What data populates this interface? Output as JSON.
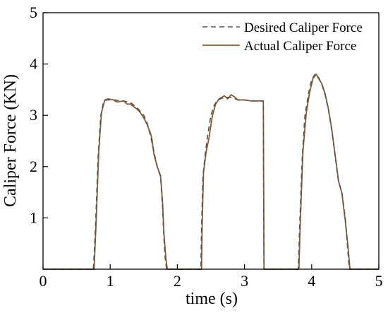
{
  "chart_data": {
    "type": "line",
    "title": "",
    "xlabel": "time (s)",
    "ylabel": "Caliper Force (KN)",
    "xlim": [
      0,
      5
    ],
    "ylim": [
      0,
      5
    ],
    "xticks": [
      "0",
      "1",
      "2",
      "3",
      "4",
      "5"
    ],
    "yticks": [
      "1",
      "2",
      "3",
      "4",
      "5"
    ],
    "grid": false,
    "legend_position": "top-right",
    "series": [
      {
        "name": "Desired Caliper Force",
        "style": "dashed",
        "color": "#555555",
        "x": [
          0,
          0.75,
          0.78,
          0.82,
          0.86,
          0.9,
          0.95,
          1.05,
          1.2,
          1.3,
          1.4,
          1.5,
          1.55,
          1.6,
          1.65,
          1.7,
          1.75,
          1.78,
          1.8,
          1.82,
          1.84,
          2.35,
          2.36,
          2.38,
          2.42,
          2.45,
          2.5,
          2.55,
          2.6,
          2.7,
          2.8,
          2.9,
          3.0,
          3.1,
          3.2,
          3.28,
          3.29,
          3.8,
          3.82,
          3.86,
          3.9,
          3.95,
          4.0,
          4.05,
          4.1,
          4.15,
          4.2,
          4.25,
          4.3,
          4.35,
          4.4,
          4.45,
          4.5,
          4.53,
          4.56,
          5.0
        ],
        "y": [
          0,
          0,
          0.8,
          2.2,
          3.0,
          3.25,
          3.3,
          3.3,
          3.28,
          3.25,
          3.15,
          3.0,
          2.85,
          2.6,
          2.3,
          2.0,
          1.8,
          1.2,
          0.6,
          0.2,
          0,
          0,
          0.8,
          1.8,
          2.3,
          2.6,
          3.0,
          3.2,
          3.3,
          3.35,
          3.35,
          3.3,
          3.3,
          3.28,
          3.28,
          3.28,
          0,
          0,
          0.8,
          2.2,
          3.0,
          3.4,
          3.7,
          3.8,
          3.75,
          3.6,
          3.4,
          3.1,
          2.7,
          2.2,
          1.7,
          1.5,
          1.0,
          0.5,
          0,
          0
        ]
      },
      {
        "name": "Actual Caliper Force",
        "style": "solid",
        "color": "#8b5a2b",
        "x": [
          0,
          0.76,
          0.79,
          0.83,
          0.87,
          0.92,
          0.97,
          1.05,
          1.1,
          1.2,
          1.25,
          1.3,
          1.4,
          1.45,
          1.5,
          1.55,
          1.6,
          1.62,
          1.65,
          1.7,
          1.75,
          1.78,
          1.8,
          1.83,
          1.85,
          2.36,
          2.37,
          2.39,
          2.43,
          2.47,
          2.52,
          2.57,
          2.62,
          2.7,
          2.75,
          2.8,
          2.85,
          2.9,
          3.0,
          3.1,
          3.2,
          3.28,
          3.29,
          3.81,
          3.83,
          3.87,
          3.92,
          3.97,
          4.02,
          4.07,
          4.1,
          4.15,
          4.2,
          4.25,
          4.3,
          4.35,
          4.4,
          4.45,
          4.5,
          4.54,
          4.57,
          5.0
        ],
        "y": [
          0,
          0,
          0.9,
          2.3,
          3.05,
          3.3,
          3.32,
          3.3,
          3.26,
          3.28,
          3.22,
          3.22,
          3.12,
          3.05,
          2.95,
          2.82,
          2.65,
          2.55,
          2.25,
          2.0,
          1.82,
          1.3,
          0.7,
          0.2,
          0,
          0,
          0.9,
          1.9,
          2.3,
          2.55,
          2.98,
          3.22,
          3.32,
          3.38,
          3.32,
          3.4,
          3.36,
          3.3,
          3.3,
          3.28,
          3.28,
          3.28,
          0,
          0,
          0.9,
          2.3,
          3.05,
          3.45,
          3.72,
          3.8,
          3.72,
          3.62,
          3.42,
          3.12,
          2.72,
          2.22,
          1.72,
          1.48,
          0.95,
          0.45,
          0,
          0
        ]
      }
    ]
  }
}
